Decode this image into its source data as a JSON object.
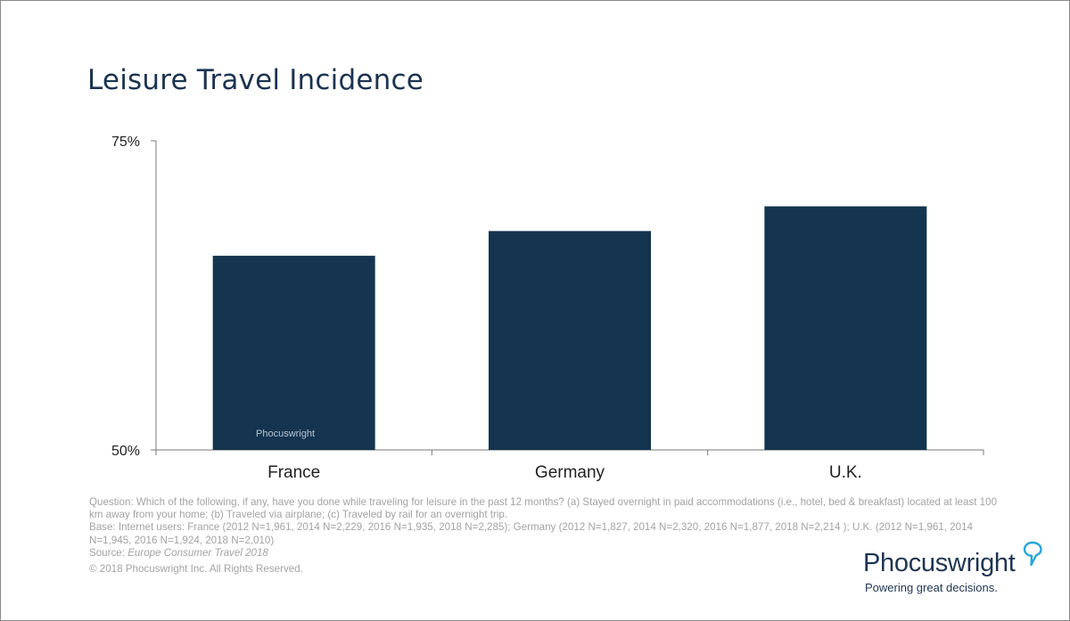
{
  "chart_data": {
    "type": "bar",
    "title": "Leisure Travel Incidence",
    "categories": [
      "France",
      "Germany",
      "U.K."
    ],
    "values": [
      65.7,
      67.7,
      69.7
    ],
    "ylim": [
      50,
      75
    ],
    "yticks": [
      "75%",
      "50%"
    ],
    "grid": false,
    "bar_color": "#14344f",
    "axis_color": "#7a7a7a"
  },
  "footnote": {
    "question": "Question: Which of the following, if any, have you done while traveling for leisure in the past 12 months? (a) Stayed overnight in paid accommodations (i.e., hotel, bed & breakfast) located at least 100 km away from your home; (b) Traveled via airplane; (c) Traveled by rail for an overnight trip.",
    "base": "Base: Internet users: France (2012 N=1,961, 2014 N=2,229, 2016 N=1,935, 2018 N=2,285); Germany (2012 N=1,827, 2014 N=2,320, 2016 N=1,877, 2018 N=2,214 ); U.K. (2012 N=1,961, 2014 N=1,945, 2016 N=1,924, 2018 N=2,010)",
    "source_prefix": "Source: ",
    "source_name": "Europe Consumer Travel 2018"
  },
  "copyright": "© 2018 Phocuswright Inc. All Rights Reserved.",
  "watermark": "Phocuswright",
  "logo": {
    "name": "Phocuswright",
    "tagline": "Powering great decisions.",
    "color": "#1f3552",
    "bubble_color": "#29a6d9"
  }
}
